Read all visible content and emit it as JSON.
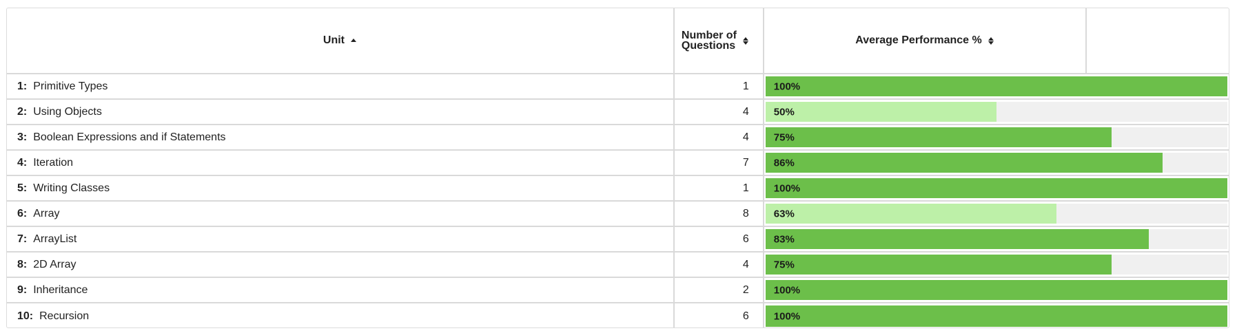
{
  "header": {
    "unit_label": "Unit",
    "num_questions_label": "Number of Questions",
    "avg_perf_label": "Average Performance %"
  },
  "colors": {
    "bar_full": "#6cbf4a",
    "bar_light": "#bdf0a8",
    "track": "#f0f0f0"
  },
  "rows": [
    {
      "num": "1:",
      "name": "Primitive Types",
      "questions": "1",
      "percent_label": "100%",
      "percent": 100,
      "shade": "dark"
    },
    {
      "num": "2:",
      "name": "Using Objects",
      "questions": "4",
      "percent_label": "50%",
      "percent": 50,
      "shade": "light"
    },
    {
      "num": "3:",
      "name": "Boolean Expressions and if Statements",
      "questions": "4",
      "percent_label": "75%",
      "percent": 75,
      "shade": "dark"
    },
    {
      "num": "4:",
      "name": "Iteration",
      "questions": "7",
      "percent_label": "86%",
      "percent": 86,
      "shade": "dark"
    },
    {
      "num": "5:",
      "name": "Writing Classes",
      "questions": "1",
      "percent_label": "100%",
      "percent": 100,
      "shade": "dark"
    },
    {
      "num": "6:",
      "name": "Array",
      "questions": "8",
      "percent_label": "63%",
      "percent": 63,
      "shade": "light"
    },
    {
      "num": "7:",
      "name": "ArrayList",
      "questions": "6",
      "percent_label": "83%",
      "percent": 83,
      "shade": "dark"
    },
    {
      "num": "8:",
      "name": "2D Array",
      "questions": "4",
      "percent_label": "75%",
      "percent": 75,
      "shade": "dark"
    },
    {
      "num": "9:",
      "name": "Inheritance",
      "questions": "2",
      "percent_label": "100%",
      "percent": 100,
      "shade": "dark"
    },
    {
      "num": "10:",
      "name": "Recursion",
      "questions": "6",
      "percent_label": "100%",
      "percent": 100,
      "shade": "dark"
    }
  ]
}
